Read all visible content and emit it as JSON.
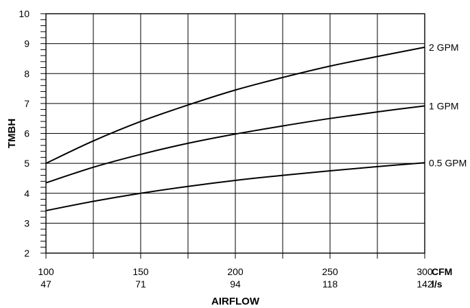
{
  "chart_data": {
    "type": "line",
    "title": "",
    "xlabel": "AIRFLOW",
    "ylabel": "TMBH",
    "x_units": {
      "primary": "CFM",
      "secondary": "l/s"
    },
    "xlim": [
      100,
      300
    ],
    "ylim": [
      2,
      10
    ],
    "x_ticks": [
      {
        "value": 100,
        "label": "100",
        "secondary_label": "47"
      },
      {
        "value": 150,
        "label": "150",
        "secondary_label": "71"
      },
      {
        "value": 200,
        "label": "200",
        "secondary_label": "94"
      },
      {
        "value": 250,
        "label": "250",
        "secondary_label": "118"
      },
      {
        "value": 300,
        "label": "300",
        "secondary_label": "142"
      }
    ],
    "y_ticks": [
      2,
      3,
      4,
      5,
      6,
      7,
      8,
      9,
      10
    ],
    "grid": true,
    "series": [
      {
        "name": "2 GPM",
        "x": [
          100,
          125,
          150,
          175,
          200,
          225,
          250,
          275,
          300
        ],
        "values": [
          5.0,
          5.75,
          6.4,
          6.95,
          7.45,
          7.87,
          8.25,
          8.57,
          8.88
        ]
      },
      {
        "name": "1 GPM",
        "x": [
          100,
          125,
          150,
          175,
          200,
          225,
          250,
          275,
          300
        ],
        "values": [
          4.35,
          4.87,
          5.3,
          5.67,
          5.98,
          6.25,
          6.5,
          6.72,
          6.92
        ]
      },
      {
        "name": "0.5 GPM",
        "x": [
          100,
          125,
          150,
          175,
          200,
          225,
          250,
          275,
          300
        ],
        "values": [
          3.42,
          3.73,
          4.0,
          4.23,
          4.43,
          4.6,
          4.75,
          4.89,
          5.02
        ]
      }
    ]
  }
}
